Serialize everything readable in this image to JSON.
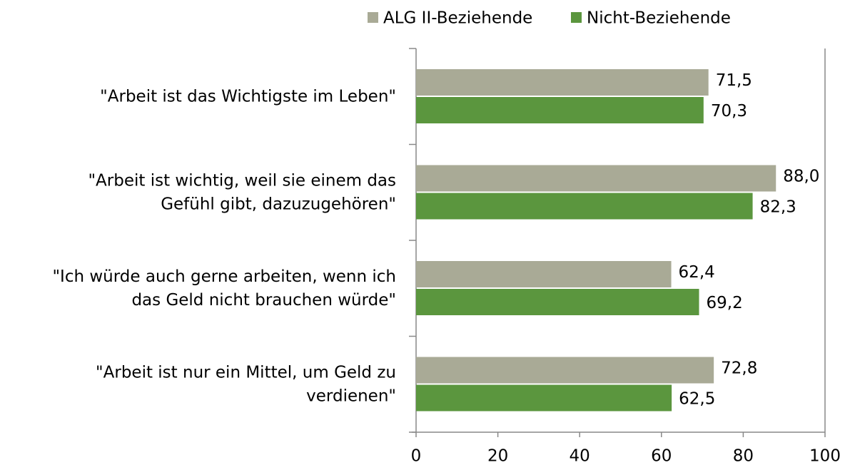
{
  "chart_data": {
    "type": "bar",
    "orientation": "horizontal",
    "categories": [
      [
        "\"Arbeit ist das Wichtigste im Leben\""
      ],
      [
        "\"Arbeit ist wichtig, weil sie einem das",
        "Gefühl gibt, dazuzugehören\""
      ],
      [
        "\"Ich würde auch gerne arbeiten, wenn ich",
        "das Geld nicht brauchen würde\""
      ],
      [
        "\"Arbeit ist nur ein Mittel, um Geld zu",
        "verdienen\""
      ]
    ],
    "series": [
      {
        "name": "ALG II-Beziehende",
        "color": "#a9aa96",
        "values": [
          71.5,
          88.0,
          62.4,
          72.8
        ],
        "value_labels": [
          "71,5",
          "88,0",
          "62,4",
          "72,8"
        ]
      },
      {
        "name": "Nicht-Beziehende",
        "color": "#5b963e",
        "values": [
          70.3,
          82.3,
          69.2,
          62.5
        ],
        "value_labels": [
          "70,3",
          "82,3",
          "69,2",
          "62,5"
        ]
      }
    ],
    "xlim": [
      0,
      100
    ],
    "xticks": [
      0,
      20,
      40,
      60,
      80,
      100
    ],
    "legend": "top"
  }
}
